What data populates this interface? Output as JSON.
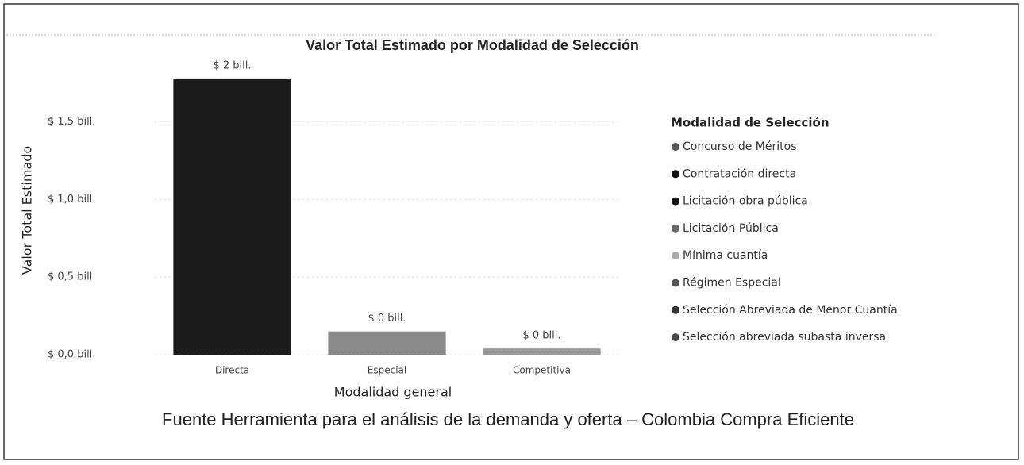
{
  "chart_data": {
    "type": "bar",
    "title": "Valor Total Estimado por Modalidad de Selección",
    "x_label": "Modalidad general",
    "y_label": "Valor Total Estimado",
    "categories": [
      "Directa",
      "Especial",
      "Competitiva"
    ],
    "values": [
      1.78,
      0.15,
      0.04
    ],
    "value_labels": [
      "$ 2 bill.",
      "$ 0 bill.",
      "$ 0 bill."
    ],
    "colors": [
      "#1c1c1c",
      "#8a8a8a",
      "#9a9a9a"
    ],
    "ylim": [
      0,
      1.8
    ],
    "yticks": [
      {
        "value": 0,
        "label": "$ 0,0 bill."
      },
      {
        "value": 0.5,
        "label": "$ 0,5 bill."
      },
      {
        "value": 1.0,
        "label": "$ 1,0 bill."
      },
      {
        "value": 1.5,
        "label": "$ 1,5 bill."
      }
    ],
    "grid": true,
    "legend": {
      "title": "Modalidad de Selección",
      "position": "right",
      "items": [
        {
          "name": "Concurso de Méritos",
          "color": "#555555"
        },
        {
          "name": "Contratación directa",
          "color": "#111111"
        },
        {
          "name": "Licitación obra pública",
          "color": "#111111"
        },
        {
          "name": "Licitación Pública",
          "color": "#666666"
        },
        {
          "name": "Mínima cuantía",
          "color": "#aaaaaa"
        },
        {
          "name": "Régimen Especial",
          "color": "#555555"
        },
        {
          "name": "Selección Abreviada de Menor Cuantía",
          "color": "#333333"
        },
        {
          "name": "Selección abreviada subasta inversa",
          "color": "#444444"
        }
      ]
    }
  },
  "caption": "Fuente Herramienta para el análisis de la demanda y oferta – Colombia Compra Eficiente"
}
